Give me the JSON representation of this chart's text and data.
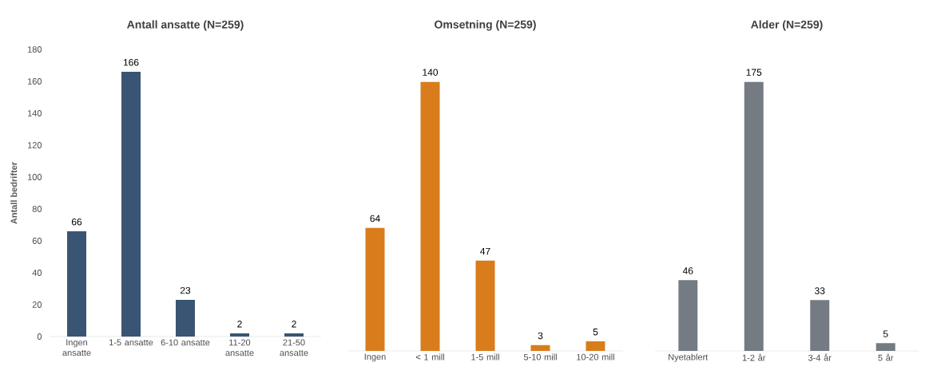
{
  "chart_data": [
    {
      "type": "bar",
      "title": "Antall ansatte (N=259)",
      "ylabel": "Antall bedrifter",
      "categories": [
        "Ingen ansatte",
        "1-5 ansatte",
        "6-10 ansatte",
        "11-20 ansatte",
        "21-50 ansatte"
      ],
      "values": [
        66,
        166,
        23,
        2,
        2
      ],
      "color": "#3a5573",
      "ylim": [
        0,
        180
      ],
      "yticks": [
        0,
        20,
        40,
        60,
        80,
        100,
        120,
        140,
        160,
        180
      ],
      "data_labels": true
    },
    {
      "type": "bar",
      "title": "Omsetning (N=259)",
      "categories": [
        "Ingen",
        "< 1 mill",
        "1-5 mill",
        "5-10 mill",
        "10-20 mill"
      ],
      "values": [
        64,
        140,
        47,
        3,
        5
      ],
      "color": "#d97c1c",
      "data_labels": true,
      "tick_labels": "x"
    },
    {
      "type": "bar",
      "title": "Alder (N=259)",
      "categories": [
        "Nyetablert",
        "1-2 år",
        "3-4 år",
        "5 år"
      ],
      "values": [
        46,
        175,
        33,
        5
      ],
      "color": "#747b82",
      "data_labels": true,
      "tick_labels": "x"
    }
  ]
}
